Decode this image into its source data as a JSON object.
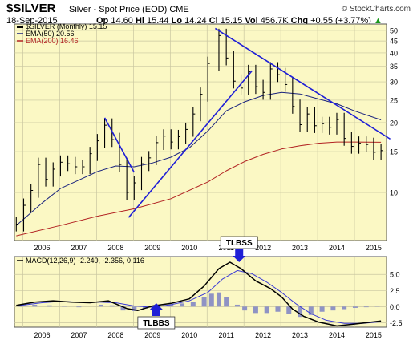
{
  "header": {
    "symbol": "$SILVER",
    "subtitle": "Silver - Spot Price (EOD)",
    "exchange": "CME",
    "logo": "© StockCharts.com",
    "date": "18-Sep-2015",
    "open_label": "Op",
    "open": "14.60",
    "high_label": "Hi",
    "high": "15.44",
    "low_label": "Lo",
    "low": "14.24",
    "close_label": "Cl",
    "close": "15.15",
    "volume_label": "Vol",
    "volume": "456.7K",
    "change_label": "Chg",
    "change": "+0.55 (+3.77%)",
    "change_arrow": "▲"
  },
  "colors": {
    "price_bg": "#fbf8c4",
    "macd_bg": "#fbf8c4",
    "bars": "#000000",
    "ema50": "#1a237e",
    "ema200": "#b22222",
    "trendline": "#1f1fd6",
    "macd_line": "#000000",
    "signal_line": "#3b3bd6",
    "histogram": "#8f93c4",
    "annotation_arrow": "#1f1fd6"
  },
  "chart_data": [
    {
      "type": "line",
      "title": "$SILVER (Monthly) 15.15",
      "legend": [
        {
          "label": "$SILVER (Monthly) 15.15",
          "color": "#000000"
        },
        {
          "label": "EMA(50) 20.56",
          "color": "#1a237e"
        },
        {
          "label": "EMA(200) 16.46",
          "color": "#b22222"
        }
      ],
      "legend_position": "top-left",
      "y_scale": "log",
      "ylim": [
        6.2,
        52
      ],
      "y_ticks": [
        10,
        15,
        20,
        25,
        30,
        35,
        40,
        45,
        50
      ],
      "x_ticks": [
        "2006",
        "2007",
        "2008",
        "2009",
        "2010",
        "2011",
        "2012",
        "2013",
        "2014",
        "2015"
      ],
      "xlim": [
        2005.75,
        2015.85
      ],
      "grid": true,
      "price_close": [
        [
          2005.8,
          7.3
        ],
        [
          2006.0,
          8.8
        ],
        [
          2006.2,
          10.2
        ],
        [
          2006.4,
          13.2
        ],
        [
          2006.6,
          11.4
        ],
        [
          2006.8,
          12.6
        ],
        [
          2007.0,
          13.5
        ],
        [
          2007.2,
          13.3
        ],
        [
          2007.4,
          12.9
        ],
        [
          2007.6,
          12.9
        ],
        [
          2007.8,
          14.7
        ],
        [
          2008.0,
          16.7
        ],
        [
          2008.2,
          19.5
        ],
        [
          2008.4,
          16.9
        ],
        [
          2008.6,
          13.2
        ],
        [
          2008.8,
          10.0
        ],
        [
          2009.0,
          11.0
        ],
        [
          2009.2,
          13.3
        ],
        [
          2009.4,
          14.1
        ],
        [
          2009.6,
          16.4
        ],
        [
          2009.8,
          17.5
        ],
        [
          2010.0,
          16.5
        ],
        [
          2010.2,
          17.4
        ],
        [
          2010.4,
          18.7
        ],
        [
          2010.6,
          21.8
        ],
        [
          2010.8,
          26.5
        ],
        [
          2011.0,
          36.0
        ],
        [
          2011.3,
          47.5
        ],
        [
          2011.5,
          38.0
        ],
        [
          2011.7,
          30.2
        ],
        [
          2011.9,
          28.2
        ],
        [
          2012.1,
          33.2
        ],
        [
          2012.3,
          28.6
        ],
        [
          2012.5,
          27.0
        ],
        [
          2012.7,
          34.1
        ],
        [
          2012.9,
          32.2
        ],
        [
          2013.1,
          29.2
        ],
        [
          2013.3,
          23.5
        ],
        [
          2013.5,
          19.6
        ],
        [
          2013.7,
          21.8
        ],
        [
          2013.9,
          19.4
        ],
        [
          2014.1,
          19.8
        ],
        [
          2014.3,
          19.1
        ],
        [
          2014.5,
          20.6
        ],
        [
          2014.7,
          17.1
        ],
        [
          2014.9,
          15.8
        ],
        [
          2015.1,
          16.3
        ],
        [
          2015.3,
          16.1
        ],
        [
          2015.5,
          14.9
        ],
        [
          2015.7,
          15.15
        ]
      ],
      "ema50": [
        [
          2005.8,
          7.2
        ],
        [
          2006.5,
          9.0
        ],
        [
          2007.0,
          10.4
        ],
        [
          2007.5,
          11.3
        ],
        [
          2008.0,
          12.3
        ],
        [
          2008.5,
          13.0
        ],
        [
          2009.0,
          12.9
        ],
        [
          2009.5,
          13.4
        ],
        [
          2010.0,
          14.2
        ],
        [
          2010.5,
          15.6
        ],
        [
          2011.0,
          18.4
        ],
        [
          2011.5,
          22.5
        ],
        [
          2012.0,
          24.6
        ],
        [
          2012.5,
          26.2
        ],
        [
          2013.0,
          27.0
        ],
        [
          2013.5,
          26.6
        ],
        [
          2014.0,
          25.3
        ],
        [
          2014.5,
          24.1
        ],
        [
          2015.0,
          22.4
        ],
        [
          2015.7,
          20.56
        ]
      ],
      "ema200": [
        [
          2005.8,
          6.5
        ],
        [
          2007.0,
          7.2
        ],
        [
          2008.0,
          7.9
        ],
        [
          2009.0,
          8.5
        ],
        [
          2010.0,
          9.4
        ],
        [
          2011.0,
          11.1
        ],
        [
          2011.5,
          12.4
        ],
        [
          2012.0,
          13.6
        ],
        [
          2012.5,
          14.6
        ],
        [
          2013.0,
          15.4
        ],
        [
          2013.5,
          15.9
        ],
        [
          2014.0,
          16.3
        ],
        [
          2014.5,
          16.5
        ],
        [
          2015.0,
          16.5
        ],
        [
          2015.7,
          16.46
        ]
      ],
      "trendlines": [
        [
          [
            2008.2,
            21.0
          ],
          [
            2009.0,
            12.2
          ]
        ],
        [
          [
            2008.85,
            7.8
          ],
          [
            2012.2,
            33.5
          ]
        ],
        [
          [
            2011.2,
            51.0
          ],
          [
            2015.95,
            17.0
          ]
        ]
      ]
    },
    {
      "type": "line",
      "title": "MACD(12,26,9) -2.240, -2.356, 0.116",
      "legend": [
        {
          "label": "MACD(12,26,9) -2.240, -2.356, 0.116",
          "color": "#000000"
        }
      ],
      "legend_position": "top-left",
      "ylim": [
        -3.2,
        7.4
      ],
      "y_ticks": [
        5.0,
        2.5,
        0.0,
        -2.5
      ],
      "x_ticks": [
        "2006",
        "2007",
        "2008",
        "2009",
        "2010",
        "2011",
        "2012",
        "2013",
        "2014",
        "2015"
      ],
      "xlim": [
        2005.75,
        2015.85
      ],
      "grid": true,
      "macd": [
        [
          2005.8,
          0.2
        ],
        [
          2006.3,
          0.7
        ],
        [
          2006.8,
          0.9
        ],
        [
          2007.3,
          0.7
        ],
        [
          2007.8,
          0.6
        ],
        [
          2008.3,
          0.9
        ],
        [
          2008.8,
          -0.3
        ],
        [
          2009.1,
          -0.6
        ],
        [
          2009.5,
          0.1
        ],
        [
          2010.0,
          0.5
        ],
        [
          2010.5,
          1.2
        ],
        [
          2010.9,
          3.2
        ],
        [
          2011.3,
          5.9
        ],
        [
          2011.6,
          6.9
        ],
        [
          2011.9,
          5.9
        ],
        [
          2012.3,
          4.0
        ],
        [
          2012.7,
          2.8
        ],
        [
          2013.0,
          1.5
        ],
        [
          2013.3,
          -0.4
        ],
        [
          2013.6,
          -1.5
        ],
        [
          2014.0,
          -2.4
        ],
        [
          2014.5,
          -3.0
        ],
        [
          2015.0,
          -2.7
        ],
        [
          2015.7,
          -2.24
        ]
      ],
      "signal": [
        [
          2005.8,
          0.1
        ],
        [
          2006.5,
          0.6
        ],
        [
          2007.0,
          0.8
        ],
        [
          2007.5,
          0.7
        ],
        [
          2008.0,
          0.7
        ],
        [
          2008.5,
          0.6
        ],
        [
          2009.0,
          0.1
        ],
        [
          2009.5,
          -0.1
        ],
        [
          2010.0,
          0.3
        ],
        [
          2010.5,
          0.9
        ],
        [
          2011.0,
          2.2
        ],
        [
          2011.4,
          4.3
        ],
        [
          2011.8,
          5.6
        ],
        [
          2012.2,
          5.1
        ],
        [
          2012.6,
          3.8
        ],
        [
          2013.0,
          2.2
        ],
        [
          2013.4,
          0.4
        ],
        [
          2013.8,
          -1.1
        ],
        [
          2014.2,
          -2.1
        ],
        [
          2014.7,
          -2.6
        ],
        [
          2015.2,
          -2.6
        ],
        [
          2015.7,
          -2.356
        ]
      ],
      "histogram": [
        [
          2005.9,
          0.2
        ],
        [
          2006.3,
          0.3
        ],
        [
          2006.7,
          0.2
        ],
        [
          2007.1,
          0.1
        ],
        [
          2007.5,
          -0.1
        ],
        [
          2008.1,
          0.3
        ],
        [
          2008.4,
          0.2
        ],
        [
          2008.7,
          -0.6
        ],
        [
          2009.0,
          -0.7
        ],
        [
          2009.3,
          -0.3
        ],
        [
          2009.6,
          0.3
        ],
        [
          2010.0,
          0.3
        ],
        [
          2010.3,
          0.5
        ],
        [
          2010.6,
          0.7
        ],
        [
          2010.9,
          1.5
        ],
        [
          2011.1,
          2.0
        ],
        [
          2011.3,
          2.2
        ],
        [
          2011.5,
          1.5
        ],
        [
          2011.8,
          0.3
        ],
        [
          2012.0,
          -0.6
        ],
        [
          2012.3,
          -1.0
        ],
        [
          2012.6,
          -1.0
        ],
        [
          2012.9,
          -0.8
        ],
        [
          2013.2,
          -1.1
        ],
        [
          2013.5,
          -1.6
        ],
        [
          2013.8,
          -1.3
        ],
        [
          2014.1,
          -0.8
        ],
        [
          2014.4,
          -0.6
        ],
        [
          2014.7,
          -0.4
        ],
        [
          2015.0,
          -0.2
        ],
        [
          2015.3,
          -0.1
        ],
        [
          2015.6,
          0.1
        ]
      ],
      "annotations": [
        {
          "text": "TLBSS",
          "x": 2011.85,
          "arrow": "down",
          "panel": "macd_top"
        },
        {
          "text": "TLBBS",
          "x": 2009.6,
          "arrow": "up",
          "panel": "macd_bottom"
        }
      ]
    }
  ]
}
